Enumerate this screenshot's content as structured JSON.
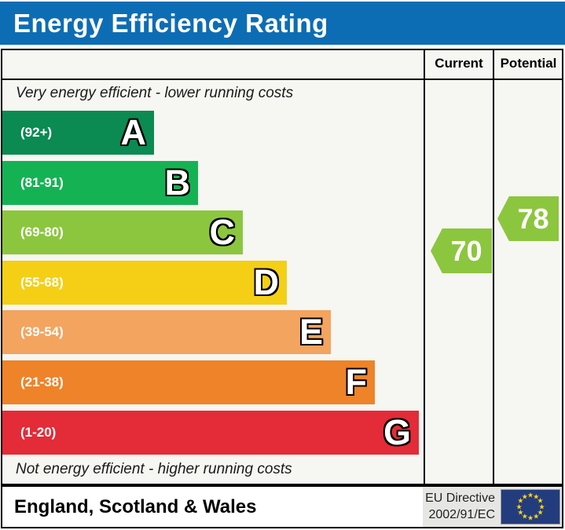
{
  "header": {
    "title": "Energy Efficiency Rating",
    "bar_color": "#0d6db4"
  },
  "table": {
    "current_label": "Current",
    "potential_label": "Potential",
    "top_note": "Very energy efficient - lower running costs",
    "bottom_note": "Not energy efficient - higher running costs"
  },
  "footer": {
    "region": "England, Scotland & Wales",
    "directive_line1": "EU Directive",
    "directive_line2": "2002/91/EC",
    "flag": "eu-flag",
    "flag_color": "#233c7d",
    "star_color": "#ffd617"
  },
  "chart_data": {
    "type": "bar",
    "orientation": "horizontal",
    "title": "Energy Efficiency Rating",
    "bands": [
      {
        "letter": "A",
        "range_label": "(92+)",
        "min": 92,
        "max": 100,
        "color": "#0b8a51"
      },
      {
        "letter": "B",
        "range_label": "(81-91)",
        "min": 81,
        "max": 91,
        "color": "#15b254"
      },
      {
        "letter": "C",
        "range_label": "(69-80)",
        "min": 69,
        "max": 80,
        "color": "#8cc63f"
      },
      {
        "letter": "D",
        "range_label": "(55-68)",
        "min": 55,
        "max": 68,
        "color": "#f4cf16"
      },
      {
        "letter": "E",
        "range_label": "(39-54)",
        "min": 39,
        "max": 54,
        "color": "#f3a45f"
      },
      {
        "letter": "F",
        "range_label": "(21-38)",
        "min": 21,
        "max": 38,
        "color": "#ee8329"
      },
      {
        "letter": "G",
        "range_label": "(1-20)",
        "min": 1,
        "max": 20,
        "color": "#e42b38"
      }
    ],
    "markers": {
      "current": {
        "value": 70,
        "color": "#8cc63f"
      },
      "potential": {
        "value": 78,
        "color": "#8cc63f"
      }
    }
  }
}
